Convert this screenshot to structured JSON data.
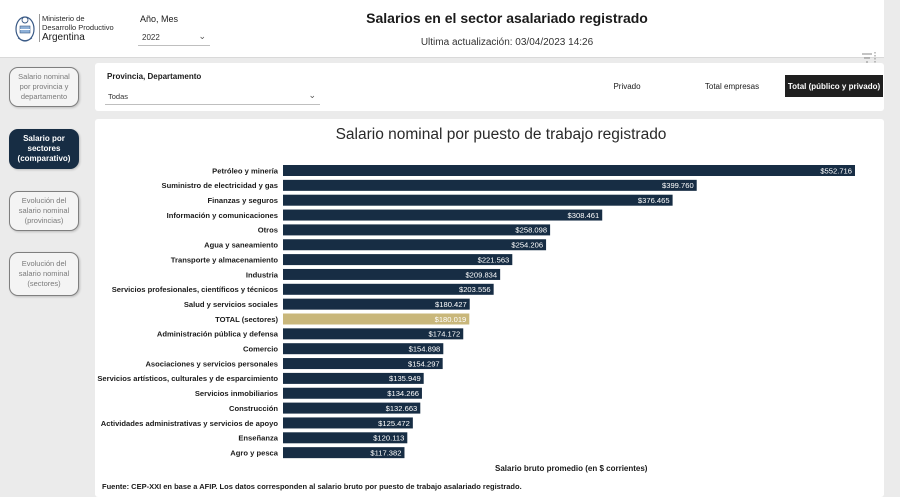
{
  "header": {
    "logo_line1": "Ministerio de",
    "logo_line2": "Desarrollo Productivo",
    "logo_line3": "Argentina",
    "period_label": "Año, Mes",
    "period_value": "2022",
    "title": "Salarios en el sector asalariado registrado",
    "subtitle": "Ultima actualización: 03/04/2023 14:26"
  },
  "sidebar": {
    "items": [
      {
        "label": "Salario nominal por provincia y departamento",
        "active": false
      },
      {
        "label": "Salario por sectores (comparativo)",
        "active": true
      },
      {
        "label": "Evolución del salario nominal (provincias)",
        "active": false
      },
      {
        "label": "Evolución del salario nominal (sectores)",
        "active": false
      }
    ]
  },
  "filters": {
    "province_label": "Provincia, Departamento",
    "province_value": "Todas",
    "segments": [
      {
        "label": "Privado",
        "active": false
      },
      {
        "label": "Total empresas",
        "active": false
      },
      {
        "label": "Total (público y privado)",
        "active": true
      }
    ]
  },
  "colors": {
    "bar": "#172d44",
    "highlight": "#c9b77b",
    "active_nav": "#172d44"
  },
  "chart_data": {
    "type": "bar",
    "orientation": "horizontal",
    "title": "Salario nominal por puesto de trabajo registrado",
    "xlabel": "Salario bruto promedio (en $ corrientes)",
    "highlight_category": "TOTAL (sectores)",
    "categories": [
      "Petróleo y minería",
      "Suministro de electricidad y gas",
      "Finanzas y seguros",
      "Información y comunicaciones",
      "Otros",
      "Agua y saneamiento",
      "Transporte y almacenamiento",
      "Industria",
      "Servicios profesionales, científicos y técnicos",
      "Salud y servicios sociales",
      "TOTAL (sectores)",
      "Administración pública y defensa",
      "Comercio",
      "Asociaciones y servicios personales",
      "Servicios artísticos, culturales y de esparcimiento",
      "Servicios inmobiliarios",
      "Construcción",
      "Actividades administrativas y servicios de apoyo",
      "Enseñanza",
      "Agro y pesca"
    ],
    "values": [
      552716,
      399760,
      376465,
      308461,
      258098,
      254206,
      221563,
      209834,
      203556,
      180427,
      180019,
      174172,
      154898,
      154297,
      135949,
      134266,
      132663,
      125472,
      120113,
      117382
    ],
    "value_labels": [
      "$552.716",
      "$399.760",
      "$376.465",
      "$308.461",
      "$258.098",
      "$254.206",
      "$221.563",
      "$209.834",
      "$203.556",
      "$180.427",
      "$180.019",
      "$174.172",
      "$154.898",
      "$154.297",
      "$135.949",
      "$134.266",
      "$132.663",
      "$125.472",
      "$120.113",
      "$117.382"
    ]
  },
  "footer": {
    "source": "Fuente: CEP-XXI en base a AFIP. Los datos corresponden al salario bruto por puesto de trabajo asalariado registrado."
  }
}
